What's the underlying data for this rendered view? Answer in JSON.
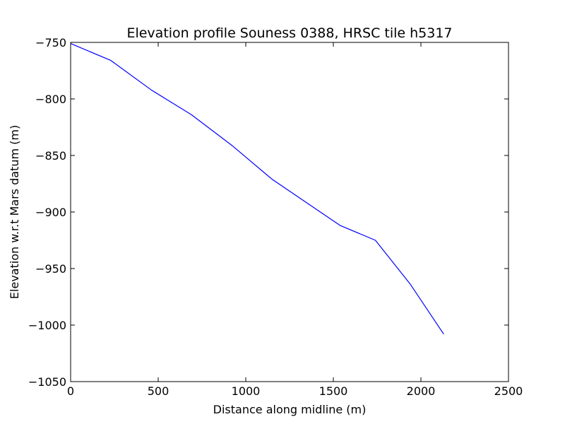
{
  "chart_data": {
    "type": "line",
    "title": "Elevation profile Souness 0388, HRSC tile h5317",
    "xlabel": "Distance along midline (m)",
    "ylabel": "Elevation w.r.t Mars datum (m)",
    "xlim": [
      0,
      2500
    ],
    "ylim": [
      -1050,
      -750
    ],
    "xticks": [
      0,
      500,
      1000,
      1500,
      2000,
      2500
    ],
    "yticks": [
      -750,
      -800,
      -850,
      -900,
      -950,
      -1000,
      -1050
    ],
    "xtick_labels": [
      "0",
      "500",
      "1000",
      "1500",
      "2000",
      "2500"
    ],
    "ytick_labels": [
      "−750",
      "−800",
      "−850",
      "−900",
      "−950",
      "−1000",
      "−1050"
    ],
    "grid": false,
    "series": [
      {
        "color": "#0000ff",
        "x": [
          0,
          230,
          460,
          690,
          920,
          1150,
          1340,
          1540,
          1740,
          1940,
          2130
        ],
        "y": [
          -751,
          -766,
          -792,
          -814,
          -841,
          -871,
          -891,
          -912,
          -925,
          -964,
          -1008
        ]
      }
    ]
  }
}
